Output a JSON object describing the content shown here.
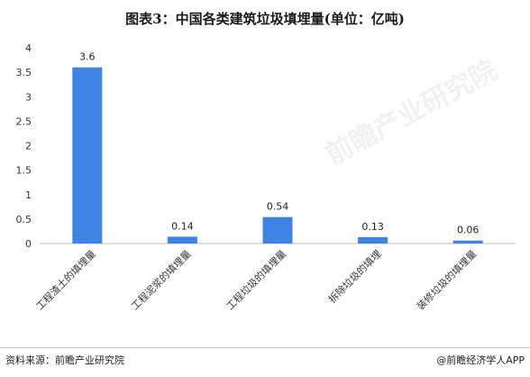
{
  "chart_data": {
    "type": "bar",
    "title": "图表3：中国各类建筑垃圾填埋量(单位：亿吨)",
    "categories": [
      "工程渣土的填埋量",
      "工程泥浆的填埋量",
      "工程垃圾的填埋量",
      "拆除垃圾的填埋",
      "装修垃圾的填埋量"
    ],
    "values": [
      3.6,
      0.14,
      0.54,
      0.13,
      0.06
    ],
    "data_labels": [
      "3.6",
      "0.14",
      "0.54",
      "0.13",
      "0.06"
    ],
    "yticks": [
      "0",
      "0.5",
      "1",
      "1.5",
      "2",
      "2.5",
      "3",
      "3.5",
      "4"
    ],
    "ylim": [
      0,
      4
    ],
    "bar_color": "#3f84e5",
    "grid": false,
    "legend": "none"
  },
  "footer": {
    "source": "资料来源：前瞻产业研究院",
    "brand": "@前瞻经济学人APP"
  },
  "watermark": "前瞻产业研究院"
}
